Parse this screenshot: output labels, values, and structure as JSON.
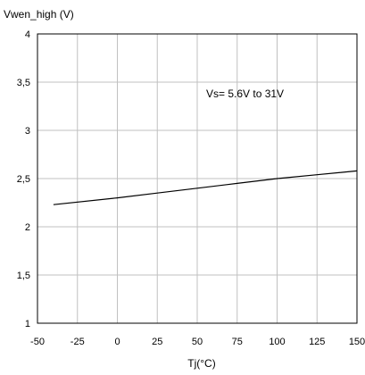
{
  "chart_data": {
    "type": "line",
    "title": "",
    "xlabel": "Tj(°C)",
    "ylabel": "Vwen_high (V)",
    "annotation": "Vs= 5.6V to 31V",
    "xlim": [
      -50,
      150
    ],
    "ylim": [
      1,
      4
    ],
    "x_ticks": [
      -50,
      -25,
      0,
      25,
      50,
      75,
      100,
      125,
      150
    ],
    "x_tick_labels": [
      "-50",
      "-25",
      "0",
      "25",
      "50",
      "75",
      "100",
      "125",
      "150"
    ],
    "y_ticks": [
      1,
      1.5,
      2,
      2.5,
      3,
      3.5,
      4
    ],
    "y_tick_labels": [
      "1",
      "1,5",
      "2",
      "2,5",
      "3",
      "3,5",
      "4"
    ],
    "grid": true,
    "series": [
      {
        "x": [
          -40,
          0,
          25,
          50,
          75,
          100,
          125,
          150
        ],
        "y": [
          2.23,
          2.3,
          2.35,
          2.4,
          2.45,
          2.5,
          2.54,
          2.58
        ]
      }
    ],
    "line_color": "#000000",
    "grid_color": "#c0c0c0"
  }
}
